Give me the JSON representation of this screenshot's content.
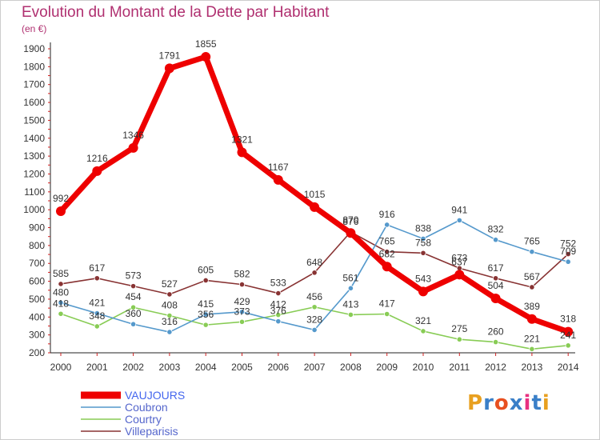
{
  "chart_data": {
    "type": "line",
    "title": "Evolution du Montant de la Dette par Habitant",
    "unit": "(en €)",
    "x": [
      2000,
      2001,
      2002,
      2003,
      2004,
      2005,
      2006,
      2007,
      2008,
      2009,
      2010,
      2011,
      2012,
      2013,
      2014
    ],
    "ylim": [
      200,
      1900
    ],
    "yticks": [
      200,
      300,
      400,
      500,
      600,
      700,
      800,
      900,
      1000,
      1100,
      1200,
      1300,
      1400,
      1500,
      1600,
      1700,
      1800,
      1900
    ],
    "grid": false,
    "legend_position": "bottom-left",
    "series": [
      {
        "name": "VAUJOURS",
        "color": "#ee0000",
        "values": [
          992,
          1216,
          1346,
          1791,
          1855,
          1321,
          1167,
          1015,
          870,
          682,
          543,
          637,
          504,
          389,
          318
        ]
      },
      {
        "name": "Coubron",
        "color": "#5599cc",
        "values": [
          480,
          421,
          360,
          316,
          415,
          429,
          376,
          328,
          561,
          916,
          838,
          941,
          832,
          765,
          709
        ]
      },
      {
        "name": "Courtry",
        "color": "#88cc55",
        "values": [
          418,
          348,
          454,
          408,
          356,
          373,
          412,
          456,
          413,
          417,
          321,
          275,
          260,
          221,
          241
        ]
      },
      {
        "name": "Villeparisis",
        "color": "#883333",
        "values": [
          585,
          617,
          573,
          527,
          605,
          582,
          533,
          648,
          876,
          765,
          758,
          673,
          617,
          567,
          752
        ]
      }
    ],
    "data_labels": [
      [
        "992",
        "1216",
        "1346",
        "1791",
        "1855",
        "1321",
        "1167",
        "1015",
        "870",
        "682",
        "543",
        "637",
        "504",
        "389",
        "318"
      ],
      [
        "480",
        "421",
        "360",
        "316",
        "415",
        "429",
        "376",
        "328",
        "561",
        "916",
        "838",
        "941",
        "832",
        "765",
        "709"
      ],
      [
        "418",
        "348",
        "454",
        "408",
        "356",
        "373",
        "412",
        "456",
        "413",
        "417",
        "321",
        "275",
        "260",
        "221",
        "241"
      ],
      [
        "585",
        "617",
        "573",
        "527",
        "605",
        "582",
        "533",
        "648",
        "876",
        "765",
        "758",
        "673",
        "617",
        "567",
        "752"
      ]
    ]
  },
  "logo": {
    "text": "Proxiti",
    "colors": [
      "#e8a020",
      "#3a7fc8",
      "#e85020",
      "#3a7fc8",
      "#e83080",
      "#3a7fc8",
      "#e8a020"
    ]
  }
}
